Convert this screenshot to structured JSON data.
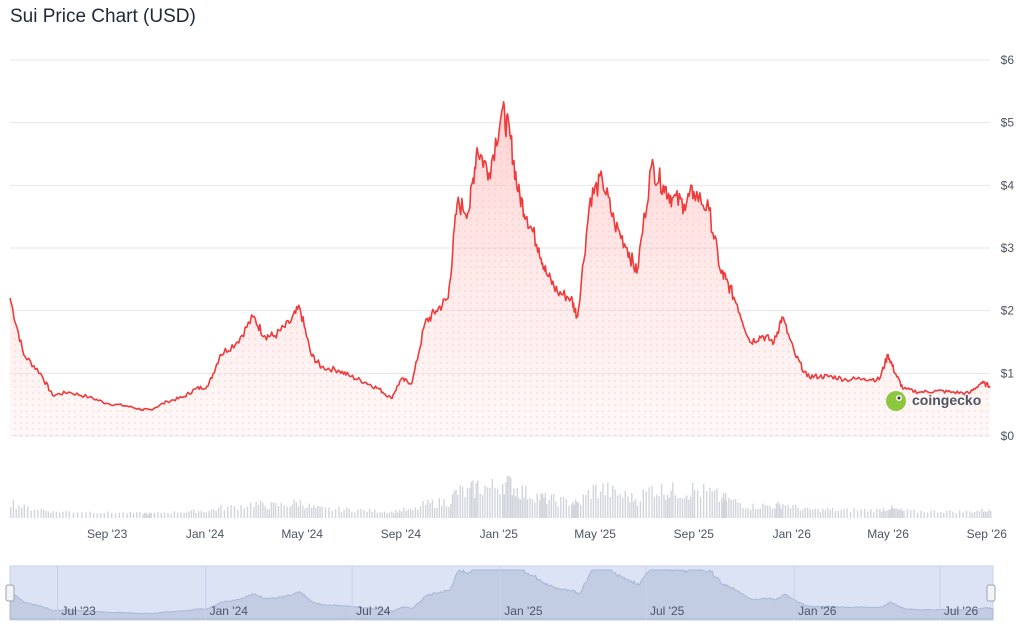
{
  "title": "Sui Price Chart (USD)",
  "watermark": "coingecko",
  "colors": {
    "line": "#ef3b3b",
    "fill_top": "#ffcccc",
    "grid": "#e5e7eb",
    "volume": "#d1d5db",
    "navigator": "#dbe3f5"
  },
  "chart_data": {
    "type": "line",
    "title": "Sui Price Chart (USD)",
    "series": [
      {
        "x": [
          "2023-05-03",
          "2023-05-20",
          "2023-06-10",
          "2023-06-25",
          "2023-07-15",
          "2023-08-10",
          "2023-09-01",
          "2023-09-25",
          "2023-10-15",
          "2023-10-25",
          "2023-11-15",
          "2023-12-05",
          "2023-12-20",
          "2024-01-05",
          "2024-01-20",
          "2024-02-10",
          "2024-03-01",
          "2024-03-15",
          "2024-03-28",
          "2024-04-15",
          "2024-04-28",
          "2024-05-12",
          "2024-05-25",
          "2024-06-15",
          "2024-07-01",
          "2024-07-20",
          "2024-08-05",
          "2024-08-20",
          "2024-09-01",
          "2024-09-15",
          "2024-10-01",
          "2024-10-15",
          "2024-10-30",
          "2024-11-10",
          "2024-11-25",
          "2024-12-05",
          "2024-12-20",
          "2025-01-05",
          "2025-01-15",
          "2025-01-25",
          "2025-02-05",
          "2025-02-20",
          "2025-03-01",
          "2025-03-15",
          "2025-04-01",
          "2025-04-09",
          "2025-04-25",
          "2025-05-10",
          "2025-05-25",
          "2025-06-10",
          "2025-06-22",
          "2025-07-10",
          "2025-07-25",
          "2025-08-05",
          "2025-08-20",
          "2025-09-01",
          "2025-09-20",
          "2025-10-05",
          "2025-10-11",
          "2025-10-25",
          "2025-11-10",
          "2025-11-25",
          "2025-12-10",
          "2025-12-20",
          "2026-01-05",
          "2026-01-20",
          "2026-02-05",
          "2026-02-20",
          "2026-03-10",
          "2026-04-01",
          "2026-04-20",
          "2026-05-01",
          "2026-05-10",
          "2026-05-20",
          "2026-06-10",
          "2026-07-01",
          "2026-07-20",
          "2026-08-10",
          "2026-08-25",
          "2026-09-05"
        ],
        "y": [
          2.2,
          1.3,
          1.0,
          0.65,
          0.7,
          0.62,
          0.52,
          0.48,
          0.42,
          0.42,
          0.55,
          0.62,
          0.75,
          0.8,
          1.3,
          1.5,
          1.9,
          1.6,
          1.6,
          1.8,
          2.05,
          1.3,
          1.1,
          1.05,
          0.95,
          0.85,
          0.75,
          0.6,
          0.9,
          0.85,
          1.8,
          2.0,
          2.2,
          3.7,
          3.6,
          4.6,
          4.2,
          5.2,
          4.8,
          3.9,
          3.5,
          3.0,
          2.6,
          2.3,
          2.2,
          1.9,
          3.8,
          4.1,
          3.4,
          3.0,
          2.6,
          4.3,
          4.0,
          3.8,
          3.7,
          3.9,
          3.6,
          2.6,
          2.5,
          2.1,
          1.5,
          1.6,
          1.5,
          1.9,
          1.3,
          0.95,
          0.95,
          0.95,
          0.9,
          0.92,
          0.9,
          1.3,
          1.0,
          0.75,
          0.7,
          0.72,
          0.7,
          0.68,
          0.85,
          0.8
        ]
      }
    ],
    "x_ticks": [
      "Sep '23",
      "Jan '24",
      "May '24",
      "Sep '24",
      "Jan '25",
      "May '25",
      "Sep '25",
      "Jan '26",
      "May '26",
      "Sep '26"
    ],
    "y_ticks": [
      "$0",
      "$1",
      "$2",
      "$3",
      "$4",
      "$5",
      "$6"
    ],
    "ylim": [
      0,
      6
    ],
    "xlabel": "",
    "ylabel": "",
    "grid": true,
    "navigator_ticks": [
      "Jul '23",
      "Jan '24",
      "Jul '24",
      "Jan '25",
      "Jul '25",
      "Jan '26",
      "Jul '26"
    ]
  }
}
